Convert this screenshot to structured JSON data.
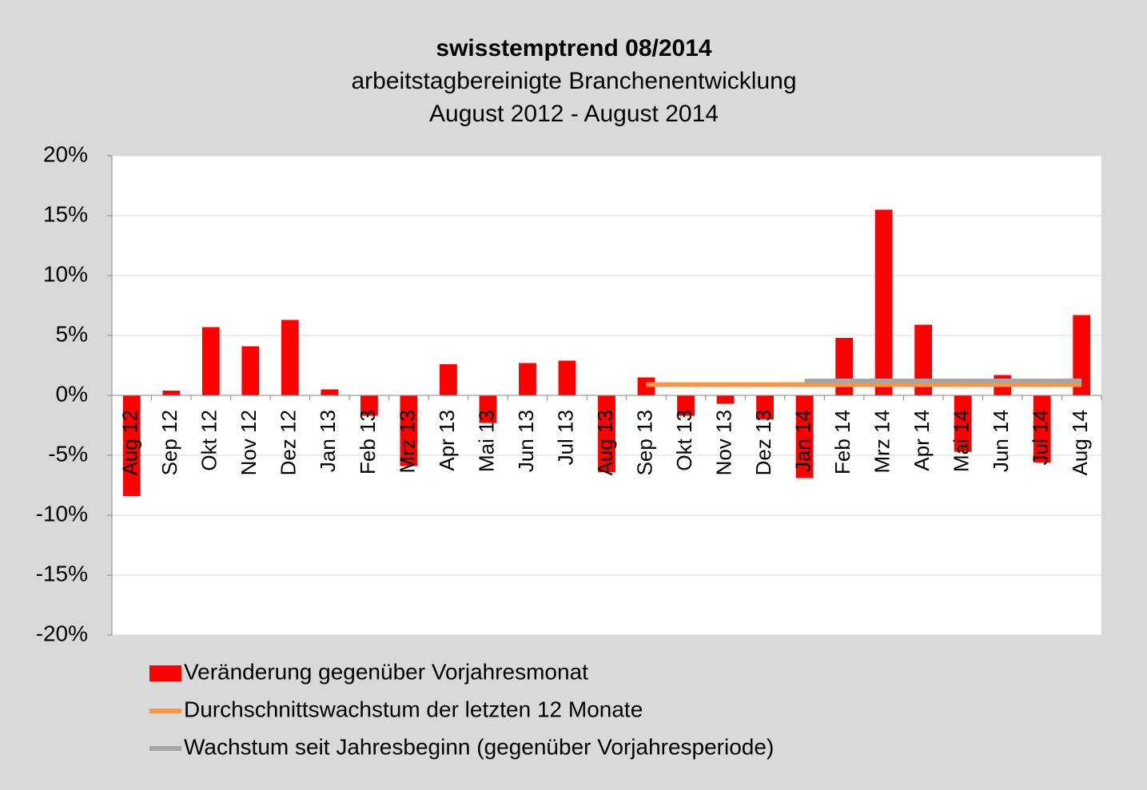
{
  "chart_data": {
    "type": "bar",
    "title": "swisstemptrend 08/2014",
    "subtitle": [
      "arbeitstagbereinigte Branchenentwicklung",
      "August 2012 - August 2014"
    ],
    "categories": [
      "Aug 12",
      "Sep 12",
      "Okt 12",
      "Nov 12",
      "Dez 12",
      "Jan 13",
      "Feb 13",
      "Mrz 13",
      "Apr 13",
      "Mai 13",
      "Jun 13",
      "Jul 13",
      "Aug 13",
      "Sep 13",
      "Okt 13",
      "Nov 13",
      "Dez 13",
      "Jan 14",
      "Feb 14",
      "Mrz 14",
      "Apr 14",
      "Mai 14",
      "Jun 14",
      "Jul 14",
      "Aug 14"
    ],
    "series": [
      {
        "name": "Veränderung gegenüber Vorjahresmonat",
        "type": "bar",
        "color": "#ff0000",
        "values": [
          -8.4,
          0.4,
          5.7,
          4.1,
          6.3,
          0.5,
          -1.7,
          -5.9,
          2.6,
          -2.3,
          2.7,
          2.9,
          -6.4,
          1.5,
          -1.7,
          -0.7,
          -2.0,
          -6.9,
          4.8,
          15.5,
          5.9,
          -4.7,
          1.7,
          -5.6,
          6.7
        ]
      },
      {
        "name": "Durchschnittswachstum der letzten 12 Monate",
        "type": "line",
        "color": "#f79646",
        "values": [
          null,
          null,
          null,
          null,
          null,
          null,
          null,
          null,
          null,
          null,
          null,
          null,
          null,
          0.9,
          0.9,
          0.9,
          0.9,
          0.9,
          0.9,
          0.9,
          0.9,
          0.9,
          0.9,
          0.9,
          0.9
        ]
      },
      {
        "name": "Wachstum seit Jahresbeginn (gegenüber Vorjahresperiode)",
        "type": "line",
        "color": "#a6a6a6",
        "values": [
          null,
          null,
          null,
          null,
          null,
          null,
          null,
          null,
          null,
          null,
          null,
          null,
          null,
          null,
          null,
          null,
          null,
          1.2,
          1.2,
          1.2,
          1.2,
          1.2,
          1.2,
          1.2,
          1.2
        ]
      }
    ],
    "ylim": [
      -20,
      20
    ],
    "yticks": [
      {
        "value": -20,
        "label": "-20%"
      },
      {
        "value": -15,
        "label": "-15%"
      },
      {
        "value": -10,
        "label": "-10%"
      },
      {
        "value": -5,
        "label": "-5%"
      },
      {
        "value": 0,
        "label": "0%"
      },
      {
        "value": 5,
        "label": "5%"
      },
      {
        "value": 10,
        "label": "10%"
      },
      {
        "value": 15,
        "label": "15%"
      },
      {
        "value": 20,
        "label": "20%"
      }
    ],
    "grid": true
  }
}
